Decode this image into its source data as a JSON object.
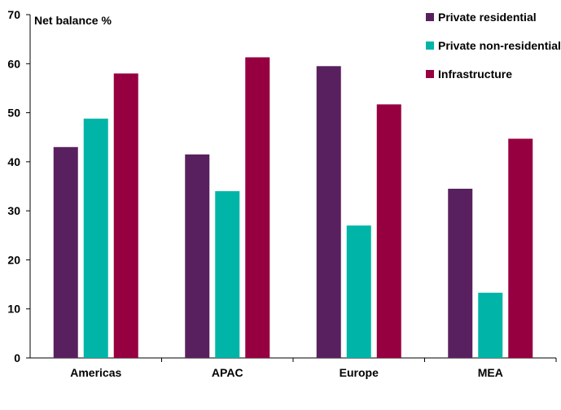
{
  "chart_data": {
    "type": "bar",
    "title": "",
    "ylabel": "Net balance %",
    "xlabel": "",
    "ylim": [
      0,
      70
    ],
    "yticks": [
      0,
      10,
      20,
      30,
      40,
      50,
      60,
      70
    ],
    "grid": false,
    "legend_position": "top-right",
    "categories": [
      "Americas",
      "APAC",
      "Europe",
      "MEA"
    ],
    "series": [
      {
        "name": "Private residential",
        "color": "#59205f",
        "values": [
          43,
          41.5,
          59.5,
          34.5
        ]
      },
      {
        "name": "Private non-residential",
        "color": "#00b5a7",
        "values": [
          48.8,
          34,
          27,
          13.3
        ]
      },
      {
        "name": "Infrastructure",
        "color": "#970040",
        "values": [
          58,
          61.3,
          51.7,
          44.7
        ]
      }
    ]
  }
}
